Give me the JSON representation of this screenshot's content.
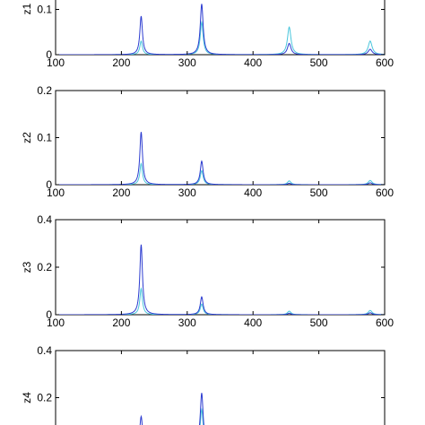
{
  "chart_data": [
    {
      "type": "line",
      "ylabel": "z1",
      "xlim": [
        100,
        600
      ],
      "ylim": [
        0,
        0.2
      ],
      "xticks": [
        "100",
        "200",
        "300",
        "400",
        "500",
        "600"
      ],
      "yticks": [
        "0",
        "0.1"
      ],
      "series": [
        {
          "color": "#2b3bd0",
          "peaks": [
            {
              "x": 230,
              "y": 0.085
            },
            {
              "x": 322,
              "y": 0.112
            },
            {
              "x": 455,
              "y": 0.025
            },
            {
              "x": 578,
              "y": 0.012
            }
          ]
        },
        {
          "color": "#49c6dc",
          "peaks": [
            {
              "x": 230,
              "y": 0.03
            },
            {
              "x": 322,
              "y": 0.072
            },
            {
              "x": 455,
              "y": 0.061
            },
            {
              "x": 578,
              "y": 0.03
            }
          ]
        }
      ]
    },
    {
      "type": "line",
      "ylabel": "z2",
      "xlim": [
        100,
        600
      ],
      "ylim": [
        0,
        0.2
      ],
      "xticks": [
        "100",
        "200",
        "300",
        "400",
        "500",
        "600"
      ],
      "yticks": [
        "0",
        "0.1",
        "0.2"
      ],
      "series": [
        {
          "color": "#2b3bd0",
          "peaks": [
            {
              "x": 230,
              "y": 0.112
            },
            {
              "x": 322,
              "y": 0.05
            },
            {
              "x": 455,
              "y": 0.003
            },
            {
              "x": 578,
              "y": 0.004
            }
          ]
        },
        {
          "color": "#49c6dc",
          "peaks": [
            {
              "x": 230,
              "y": 0.045
            },
            {
              "x": 322,
              "y": 0.03
            },
            {
              "x": 455,
              "y": 0.008
            },
            {
              "x": 578,
              "y": 0.009
            }
          ]
        }
      ]
    },
    {
      "type": "line",
      "ylabel": "z3",
      "xlim": [
        100,
        600
      ],
      "ylim": [
        0,
        0.4
      ],
      "xticks": [
        "100",
        "200",
        "300",
        "400",
        "500",
        "600"
      ],
      "yticks": [
        "0",
        "0.2",
        "0.4"
      ],
      "series": [
        {
          "color": "#2b3bd0",
          "peaks": [
            {
              "x": 230,
              "y": 0.295
            },
            {
              "x": 322,
              "y": 0.075
            },
            {
              "x": 455,
              "y": 0.006
            },
            {
              "x": 578,
              "y": 0.008
            }
          ]
        },
        {
          "color": "#49c6dc",
          "peaks": [
            {
              "x": 230,
              "y": 0.11
            },
            {
              "x": 322,
              "y": 0.045
            },
            {
              "x": 455,
              "y": 0.015
            },
            {
              "x": 578,
              "y": 0.018
            }
          ]
        }
      ]
    },
    {
      "type": "line",
      "ylabel": "z4",
      "xlim": [
        100,
        600
      ],
      "ylim": [
        0,
        0.4
      ],
      "xticks": [],
      "yticks": [
        "0.2",
        "0.4"
      ],
      "series": [
        {
          "color": "#2b3bd0",
          "peaks": [
            {
              "x": 230,
              "y": 0.12
            },
            {
              "x": 322,
              "y": 0.22
            },
            {
              "x": 455,
              "y": 0.01
            },
            {
              "x": 578,
              "y": 0.01
            }
          ]
        },
        {
          "color": "#49c6dc",
          "peaks": [
            {
              "x": 230,
              "y": 0.06
            },
            {
              "x": 322,
              "y": 0.15
            },
            {
              "x": 455,
              "y": 0.02
            },
            {
              "x": 578,
              "y": 0.02
            }
          ]
        }
      ]
    }
  ]
}
